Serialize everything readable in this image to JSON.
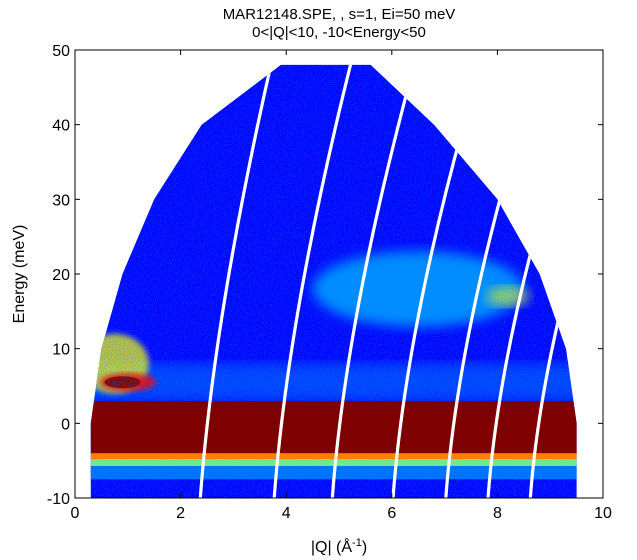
{
  "chart_data": {
    "type": "heatmap",
    "title": "MAR12148.SPE, , s=1, Ei=50 meV",
    "subtitle": "0<|Q|<10,  -10<Energy<50",
    "xlabel": "|Q| (Å",
    "xlabel_sup": "-1",
    "xlabel_close": ")",
    "ylabel": "Energy (meV)",
    "xlim": [
      0,
      10
    ],
    "ylim": [
      -10,
      50
    ],
    "xticks": [
      0,
      2,
      4,
      6,
      8,
      10
    ],
    "yticks": [
      -10,
      0,
      10,
      20,
      30,
      40,
      50
    ],
    "grid": false,
    "coverage_boundary": {
      "left_edge": [
        [
          0.3,
          -10
        ],
        [
          0.3,
          0
        ],
        [
          0.5,
          10
        ],
        [
          0.9,
          20
        ],
        [
          1.5,
          30
        ],
        [
          2.4,
          40
        ],
        [
          3.9,
          48
        ]
      ],
      "top_edge": [
        [
          3.9,
          48
        ],
        [
          5.6,
          48
        ]
      ],
      "right_edge": [
        [
          5.6,
          48
        ],
        [
          6.8,
          40
        ],
        [
          8.0,
          30
        ],
        [
          8.8,
          20
        ],
        [
          9.3,
          10
        ],
        [
          9.5,
          0
        ],
        [
          9.5,
          -10
        ]
      ]
    },
    "features": [
      {
        "name": "elastic line",
        "energy_range": [
          -4,
          3
        ],
        "q_range": [
          0.3,
          9.5
        ],
        "intensity": "saturated"
      },
      {
        "name": "low-Q feature",
        "energy_range": [
          3,
          11
        ],
        "q_range": [
          0.3,
          1.6
        ],
        "intensity": "high"
      },
      {
        "name": "inelastic band",
        "energy_range": [
          14,
          22
        ],
        "q_range": [
          4.5,
          8.5
        ],
        "intensity": "medium"
      }
    ],
    "detector_gaps_at_E0": [
      2.6,
      4.0,
      5.1,
      6.25,
      7.25,
      8.05,
      8.85
    ],
    "colormap": [
      "#00007f",
      "#0000ff",
      "#0080ff",
      "#00ffff",
      "#80ff80",
      "#ffff00",
      "#ff8000",
      "#ff0000",
      "#7f0000"
    ],
    "background_color": "#ffffff"
  }
}
